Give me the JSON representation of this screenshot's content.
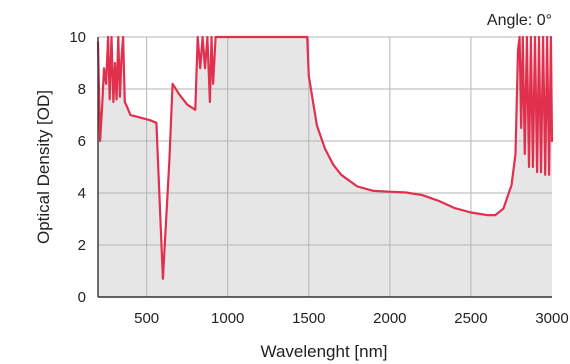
{
  "chart_data": {
    "type": "area",
    "annotation": "Angle: 0°",
    "xlabel": "Wavelenght [nm]",
    "ylabel": "Optical Density [OD]",
    "xlim": [
      200,
      3000
    ],
    "ylim": [
      0,
      10
    ],
    "x_ticks": [
      500,
      1000,
      1500,
      2000,
      2500,
      3000
    ],
    "y_ticks": [
      0,
      2,
      4,
      6,
      8,
      10
    ],
    "grid": true,
    "colors": {
      "line": "#e0304e",
      "fill": "#e7e6e6",
      "grid": "#b5b5b5",
      "axis": "#333333"
    },
    "series": [
      {
        "points": [
          [
            200,
            9.8
          ],
          [
            213,
            6.0
          ],
          [
            225,
            7.3
          ],
          [
            237,
            8.8
          ],
          [
            250,
            8.2
          ],
          [
            262,
            10
          ],
          [
            272,
            7.6
          ],
          [
            283,
            10
          ],
          [
            295,
            7.5
          ],
          [
            305,
            9.0
          ],
          [
            315,
            7.6
          ],
          [
            325,
            10
          ],
          [
            335,
            7.7
          ],
          [
            345,
            9.2
          ],
          [
            355,
            10
          ],
          [
            365,
            7.5
          ],
          [
            380,
            7.3
          ],
          [
            400,
            7.0
          ],
          [
            460,
            6.9
          ],
          [
            520,
            6.8
          ],
          [
            560,
            6.7
          ],
          [
            600,
            0.7
          ],
          [
            640,
            5.2
          ],
          [
            660,
            8.2
          ],
          [
            700,
            7.8
          ],
          [
            750,
            7.4
          ],
          [
            800,
            7.2
          ],
          [
            815,
            10
          ],
          [
            830,
            8.8
          ],
          [
            845,
            10
          ],
          [
            860,
            8.8
          ],
          [
            875,
            10
          ],
          [
            890,
            7.5
          ],
          [
            900,
            10
          ],
          [
            910,
            8.2
          ],
          [
            925,
            10
          ],
          [
            1000,
            10
          ],
          [
            1200,
            10
          ],
          [
            1400,
            10
          ],
          [
            1490,
            10
          ],
          [
            1500,
            8.5
          ],
          [
            1550,
            6.6
          ],
          [
            1600,
            5.7
          ],
          [
            1650,
            5.1
          ],
          [
            1700,
            4.7
          ],
          [
            1800,
            4.25
          ],
          [
            1900,
            4.08
          ],
          [
            2000,
            4.05
          ],
          [
            2100,
            4.02
          ],
          [
            2200,
            3.92
          ],
          [
            2300,
            3.7
          ],
          [
            2400,
            3.42
          ],
          [
            2500,
            3.25
          ],
          [
            2600,
            3.15
          ],
          [
            2650,
            3.15
          ],
          [
            2700,
            3.4
          ],
          [
            2750,
            4.3
          ],
          [
            2775,
            5.5
          ],
          [
            2790,
            9.5
          ],
          [
            2800,
            10
          ],
          [
            2810,
            6.5
          ],
          [
            2820,
            10
          ],
          [
            2832,
            5.5
          ],
          [
            2845,
            10
          ],
          [
            2858,
            5.0
          ],
          [
            2870,
            10
          ],
          [
            2882,
            5.0
          ],
          [
            2895,
            10
          ],
          [
            2908,
            4.8
          ],
          [
            2920,
            10
          ],
          [
            2932,
            4.8
          ],
          [
            2945,
            10
          ],
          [
            2958,
            4.7
          ],
          [
            2970,
            10
          ],
          [
            2982,
            4.7
          ],
          [
            2993,
            10
          ],
          [
            3000,
            6.0
          ]
        ]
      }
    ]
  }
}
